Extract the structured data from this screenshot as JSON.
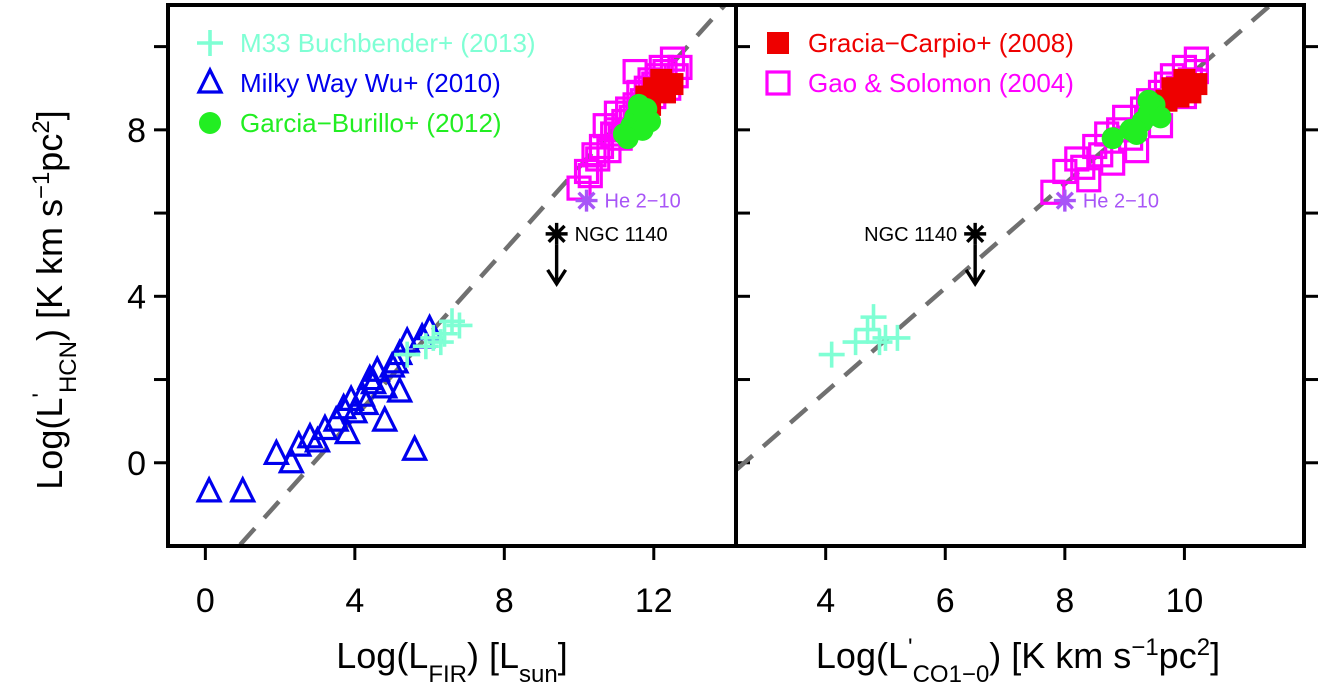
{
  "colors": {
    "m33": "#7fffd4",
    "milkyway": "#0000ee",
    "garcia_burillo": "#22ee22",
    "gracia_carpio": "#ee0000",
    "gao_solomon": "#ff00ff",
    "he210": "#a855f7",
    "ngc1140": "#000000",
    "fit": "#707070"
  },
  "chart_data": [
    {
      "type": "scatter",
      "panel": "left",
      "xlabel": "Log(L_FIR) [L_sun]",
      "ylabel": "Log(L'_HCN) [K km s^-1 pc^2]",
      "xlim": [
        -1,
        14.2
      ],
      "ylim": [
        -2,
        11
      ],
      "xticks": [
        "0",
        "4",
        "8",
        "12"
      ],
      "xtick_values": [
        0,
        4,
        8,
        12
      ],
      "yticks": [
        "0",
        "4",
        "8"
      ],
      "ytick_values": [
        0,
        4,
        8
      ],
      "legend_position": "top-left",
      "legend": [
        {
          "key": "m33",
          "label": "M33 Buchbender+ (2013)",
          "marker": "plus"
        },
        {
          "key": "milkyway",
          "label": "Milky Way Wu+ (2010)",
          "marker": "triangle"
        },
        {
          "key": "garcia_burillo",
          "label": "Garcia−Burillo+ (2012)",
          "marker": "circle"
        }
      ],
      "fit_line": {
        "slope": 1.0,
        "intercept": -2.9
      },
      "series": [
        {
          "key": "milkyway",
          "marker": "triangle",
          "x": [
            0.1,
            1.0,
            1.9,
            2.3,
            2.5,
            2.8,
            3.0,
            3.2,
            3.5,
            3.7,
            3.8,
            4.0,
            4.2,
            4.3,
            4.5,
            4.6,
            4.8,
            5.0,
            5.2,
            5.4,
            5.6,
            3.9,
            4.4,
            5.1,
            5.8,
            6.0,
            4.8,
            5.2
          ],
          "y": [
            -0.7,
            -0.7,
            0.2,
            0.0,
            0.4,
            0.6,
            0.5,
            0.8,
            1.0,
            1.3,
            0.7,
            1.2,
            1.6,
            1.4,
            1.9,
            2.2,
            1.8,
            2.3,
            2.6,
            2.9,
            0.3,
            1.5,
            2.0,
            2.4,
            3.0,
            3.2,
            1.0,
            1.7
          ]
        },
        {
          "key": "m33",
          "marker": "plus",
          "x": [
            5.4,
            5.9,
            6.1,
            6.4,
            6.6,
            6.8,
            6.3
          ],
          "y": [
            2.6,
            2.8,
            3.0,
            3.1,
            3.4,
            3.3,
            2.9
          ]
        },
        {
          "key": "gao_solomon",
          "marker": "square",
          "x": [
            10.0,
            10.2,
            10.3,
            10.5,
            10.6,
            10.8,
            10.9,
            11.0,
            11.1,
            11.2,
            11.3,
            11.4,
            11.5,
            11.6,
            11.7,
            11.8,
            11.9,
            12.0,
            12.1,
            12.2,
            12.3,
            12.5,
            12.6,
            12.7,
            10.4,
            10.7,
            11.0,
            11.5,
            12.0,
            12.4
          ],
          "y": [
            6.6,
            7.0,
            6.9,
            7.3,
            7.6,
            7.5,
            7.9,
            8.0,
            7.8,
            8.2,
            8.5,
            8.3,
            8.6,
            8.9,
            8.7,
            9.0,
            9.2,
            9.1,
            9.3,
            9.5,
            9.4,
            9.7,
            9.3,
            9.5,
            7.4,
            8.1,
            8.4,
            9.4,
            8.8,
            9.0
          ]
        },
        {
          "key": "gracia_carpio",
          "marker": "filled-square",
          "x": [
            11.8,
            12.0,
            12.2,
            12.3,
            12.5,
            11.9
          ],
          "y": [
            8.8,
            9.0,
            9.2,
            8.9,
            9.1,
            8.6
          ]
        },
        {
          "key": "garcia_burillo",
          "marker": "circle",
          "x": [
            11.2,
            11.4,
            11.5,
            11.7,
            11.8,
            11.9,
            11.3,
            11.6
          ],
          "y": [
            7.9,
            8.1,
            8.3,
            8.0,
            8.5,
            8.2,
            7.8,
            8.6
          ]
        },
        {
          "key": "he210",
          "marker": "asterisk",
          "x": [
            10.2
          ],
          "y": [
            6.3
          ]
        },
        {
          "key": "ngc1140",
          "marker": "asterisk-upper-limit",
          "x": [
            9.4
          ],
          "y": [
            5.5
          ]
        }
      ],
      "annotations": [
        {
          "text": "He 2−10",
          "x": 10.2,
          "y": 6.3,
          "color_key": "he210",
          "side": "right"
        },
        {
          "text": "NGC 1140",
          "x": 9.4,
          "y": 5.5,
          "color_key": "ngc1140",
          "side": "right"
        }
      ]
    },
    {
      "type": "scatter",
      "panel": "right",
      "xlabel": "Log(L'_CO1-0) [K km s^-1 pc^2]",
      "xlim": [
        2.5,
        12.0
      ],
      "ylim": [
        -2,
        11
      ],
      "xticks": [
        "4",
        "6",
        "8",
        "10"
      ],
      "xtick_values": [
        4,
        6,
        8,
        10
      ],
      "ytick_values": [
        0,
        4,
        8
      ],
      "legend_position": "top-left",
      "legend": [
        {
          "key": "gracia_carpio",
          "label": "Gracia−Carpio+ (2008)",
          "marker": "filled-square"
        },
        {
          "key": "gao_solomon",
          "label": "Gao & Solomon (2004)",
          "marker": "square"
        }
      ],
      "fit_line": {
        "slope": 1.25,
        "intercept": -3.3
      },
      "series": [
        {
          "key": "m33",
          "marker": "plus",
          "x": [
            4.1,
            4.5,
            4.7,
            4.8,
            5.0,
            5.2,
            4.9
          ],
          "y": [
            2.6,
            2.9,
            3.2,
            3.5,
            3.0,
            3.0,
            2.9
          ]
        },
        {
          "key": "gao_solomon",
          "marker": "square",
          "x": [
            7.8,
            8.0,
            8.2,
            8.3,
            8.5,
            8.6,
            8.7,
            8.9,
            9.0,
            9.1,
            9.3,
            9.4,
            9.5,
            9.6,
            9.7,
            9.8,
            9.9,
            10.0,
            10.1,
            10.2,
            8.4,
            8.8,
            9.2,
            9.6,
            10.0,
            10.2
          ],
          "y": [
            6.5,
            7.0,
            7.3,
            7.1,
            7.6,
            7.4,
            7.9,
            8.0,
            8.3,
            7.8,
            8.5,
            8.7,
            8.4,
            8.9,
            9.1,
            9.3,
            9.0,
            9.5,
            9.2,
            9.4,
            6.8,
            7.2,
            7.5,
            8.1,
            8.8,
            9.7
          ]
        },
        {
          "key": "gracia_carpio",
          "marker": "filled-square",
          "x": [
            9.8,
            9.9,
            10.0,
            10.1,
            10.2,
            9.7
          ],
          "y": [
            9.0,
            8.8,
            9.2,
            8.9,
            9.1,
            8.7
          ]
        },
        {
          "key": "garcia_burillo",
          "marker": "circle",
          "x": [
            8.8,
            9.1,
            9.3,
            9.4,
            9.5,
            9.6,
            9.2,
            9.4
          ],
          "y": [
            7.8,
            8.0,
            8.2,
            8.4,
            8.6,
            8.3,
            7.9,
            8.7
          ]
        },
        {
          "key": "he210",
          "marker": "asterisk",
          "x": [
            8.0
          ],
          "y": [
            6.3
          ]
        },
        {
          "key": "ngc1140",
          "marker": "asterisk-upper-limit",
          "x": [
            6.5
          ],
          "y": [
            5.5
          ]
        }
      ],
      "annotations": [
        {
          "text": "He 2−10",
          "x": 8.0,
          "y": 6.3,
          "color_key": "he210",
          "side": "right"
        },
        {
          "text": "NGC 1140",
          "x": 6.5,
          "y": 5.5,
          "color_key": "ngc1140",
          "side": "left"
        }
      ]
    }
  ]
}
